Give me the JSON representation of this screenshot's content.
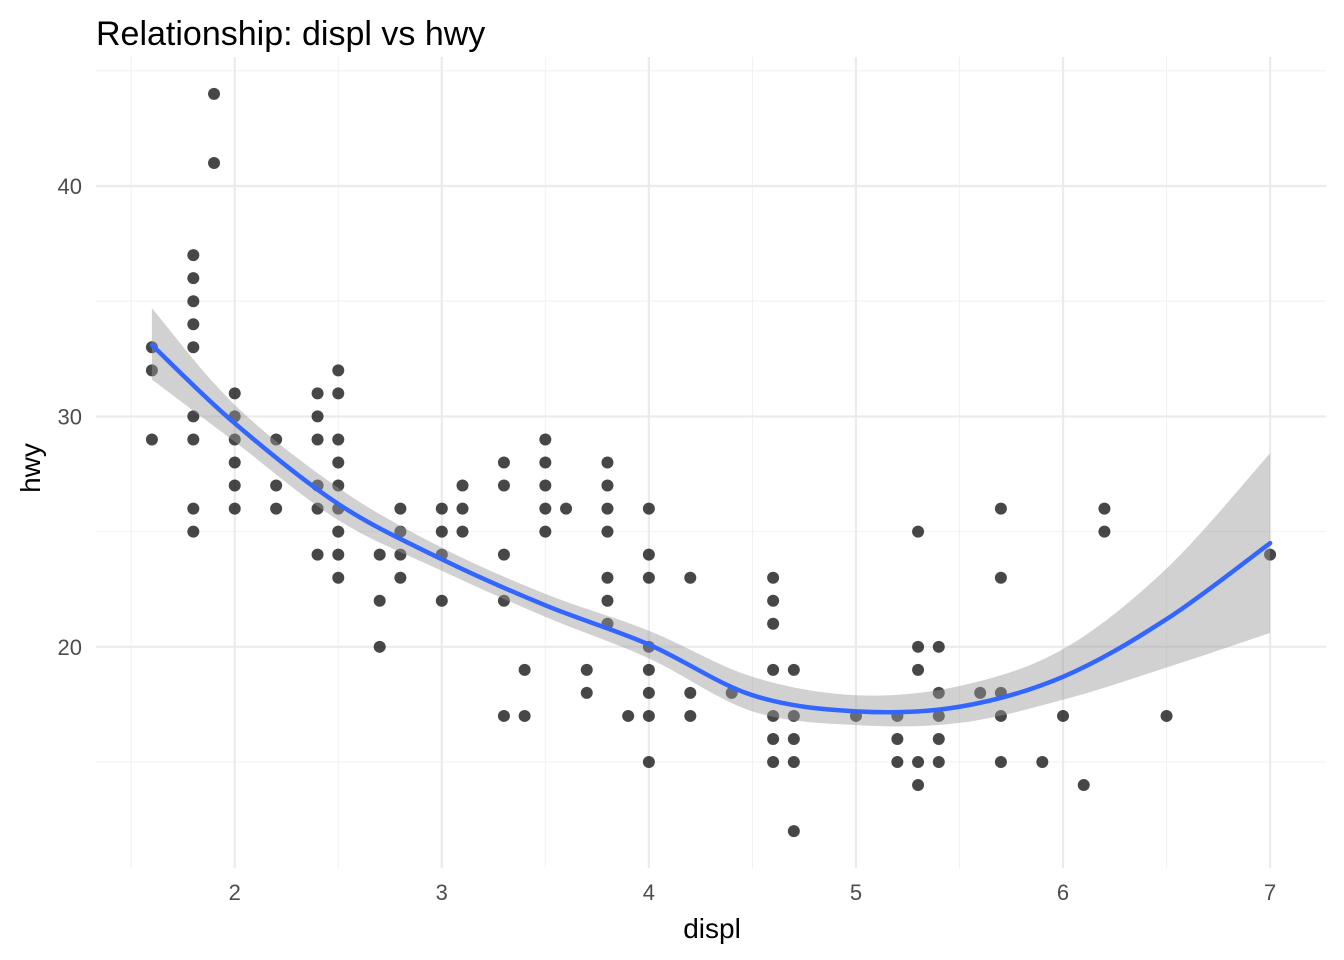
{
  "chart_data": {
    "type": "scatter",
    "title": "Relationship: displ vs hwy",
    "xlabel": "displ",
    "ylabel": "hwy",
    "xlim": [
      1.33,
      7.27
    ],
    "ylim": [
      10.4,
      45.6
    ],
    "x_ticks": [
      2,
      3,
      4,
      5,
      6,
      7
    ],
    "y_ticks": [
      20,
      30,
      40
    ],
    "x_tick_labels": [
      "2",
      "3",
      "4",
      "5",
      "6",
      "7"
    ],
    "y_tick_labels": [
      "20",
      "30",
      "40"
    ],
    "grid": true,
    "points": [
      [
        1.6,
        33
      ],
      [
        1.6,
        32
      ],
      [
        1.6,
        29
      ],
      [
        1.8,
        37
      ],
      [
        1.8,
        36
      ],
      [
        1.8,
        35
      ],
      [
        1.8,
        34
      ],
      [
        1.8,
        33
      ],
      [
        1.8,
        30
      ],
      [
        1.8,
        29
      ],
      [
        1.8,
        26
      ],
      [
        1.8,
        25
      ],
      [
        1.9,
        44
      ],
      [
        1.9,
        41
      ],
      [
        2.0,
        31
      ],
      [
        2.0,
        30
      ],
      [
        2.0,
        29
      ],
      [
        2.0,
        28
      ],
      [
        2.0,
        27
      ],
      [
        2.0,
        26
      ],
      [
        2.2,
        29
      ],
      [
        2.2,
        27
      ],
      [
        2.2,
        26
      ],
      [
        2.4,
        31
      ],
      [
        2.4,
        30
      ],
      [
        2.4,
        29
      ],
      [
        2.4,
        27
      ],
      [
        2.4,
        26
      ],
      [
        2.4,
        24
      ],
      [
        2.5,
        32
      ],
      [
        2.5,
        31
      ],
      [
        2.5,
        29
      ],
      [
        2.5,
        28
      ],
      [
        2.5,
        27
      ],
      [
        2.5,
        26
      ],
      [
        2.5,
        25
      ],
      [
        2.5,
        24
      ],
      [
        2.5,
        23
      ],
      [
        2.7,
        24
      ],
      [
        2.7,
        22
      ],
      [
        2.7,
        20
      ],
      [
        2.8,
        26
      ],
      [
        2.8,
        25
      ],
      [
        2.8,
        24
      ],
      [
        2.8,
        23
      ],
      [
        3.0,
        26
      ],
      [
        3.0,
        25
      ],
      [
        3.0,
        24
      ],
      [
        3.0,
        22
      ],
      [
        3.1,
        27
      ],
      [
        3.1,
        26
      ],
      [
        3.1,
        25
      ],
      [
        3.3,
        28
      ],
      [
        3.3,
        27
      ],
      [
        3.3,
        24
      ],
      [
        3.3,
        22
      ],
      [
        3.3,
        17
      ],
      [
        3.4,
        19
      ],
      [
        3.4,
        17
      ],
      [
        3.5,
        29
      ],
      [
        3.5,
        28
      ],
      [
        3.5,
        27
      ],
      [
        3.5,
        26
      ],
      [
        3.5,
        25
      ],
      [
        3.6,
        26
      ],
      [
        3.7,
        19
      ],
      [
        3.7,
        18
      ],
      [
        3.8,
        28
      ],
      [
        3.8,
        27
      ],
      [
        3.8,
        26
      ],
      [
        3.8,
        25
      ],
      [
        3.8,
        23
      ],
      [
        3.8,
        22
      ],
      [
        3.8,
        21
      ],
      [
        3.9,
        17
      ],
      [
        4.0,
        26
      ],
      [
        4.0,
        24
      ],
      [
        4.0,
        23
      ],
      [
        4.0,
        20
      ],
      [
        4.0,
        19
      ],
      [
        4.0,
        18
      ],
      [
        4.0,
        17
      ],
      [
        4.0,
        15
      ],
      [
        4.2,
        23
      ],
      [
        4.2,
        18
      ],
      [
        4.2,
        17
      ],
      [
        4.4,
        18
      ],
      [
        4.6,
        23
      ],
      [
        4.6,
        22
      ],
      [
        4.6,
        21
      ],
      [
        4.6,
        19
      ],
      [
        4.6,
        17
      ],
      [
        4.6,
        16
      ],
      [
        4.6,
        15
      ],
      [
        4.7,
        19
      ],
      [
        4.7,
        17
      ],
      [
        4.7,
        16
      ],
      [
        4.7,
        15
      ],
      [
        4.7,
        12
      ],
      [
        5.0,
        17
      ],
      [
        5.2,
        17
      ],
      [
        5.2,
        16
      ],
      [
        5.2,
        15
      ],
      [
        5.3,
        25
      ],
      [
        5.3,
        20
      ],
      [
        5.3,
        19
      ],
      [
        5.3,
        15
      ],
      [
        5.3,
        14
      ],
      [
        5.4,
        20
      ],
      [
        5.4,
        18
      ],
      [
        5.4,
        17
      ],
      [
        5.4,
        16
      ],
      [
        5.4,
        15
      ],
      [
        5.6,
        18
      ],
      [
        5.7,
        26
      ],
      [
        5.7,
        23
      ],
      [
        5.7,
        18
      ],
      [
        5.7,
        17
      ],
      [
        5.7,
        15
      ],
      [
        5.9,
        15
      ],
      [
        6.0,
        17
      ],
      [
        6.1,
        14
      ],
      [
        6.2,
        26
      ],
      [
        6.2,
        25
      ],
      [
        6.5,
        17
      ],
      [
        7.0,
        24
      ]
    ],
    "smooth": {
      "method": "loess",
      "color": "#3366ff",
      "band_color": "#999999",
      "x": [
        1.6,
        2.0,
        2.5,
        3.0,
        3.5,
        4.0,
        4.5,
        5.0,
        5.5,
        6.0,
        6.5,
        7.0
      ],
      "y": [
        33.1,
        29.7,
        26.2,
        23.8,
        21.8,
        20.1,
        17.9,
        17.2,
        17.4,
        18.7,
        21.2,
        24.5
      ],
      "lower": [
        31.6,
        28.9,
        25.5,
        23.3,
        21.3,
        19.5,
        17.2,
        16.6,
        16.7,
        17.7,
        19.1,
        20.6
      ],
      "upper": [
        34.7,
        30.5,
        26.9,
        24.3,
        22.3,
        20.7,
        18.7,
        17.9,
        18.3,
        19.9,
        23.4,
        28.4
      ]
    },
    "point_color": "#000000"
  }
}
